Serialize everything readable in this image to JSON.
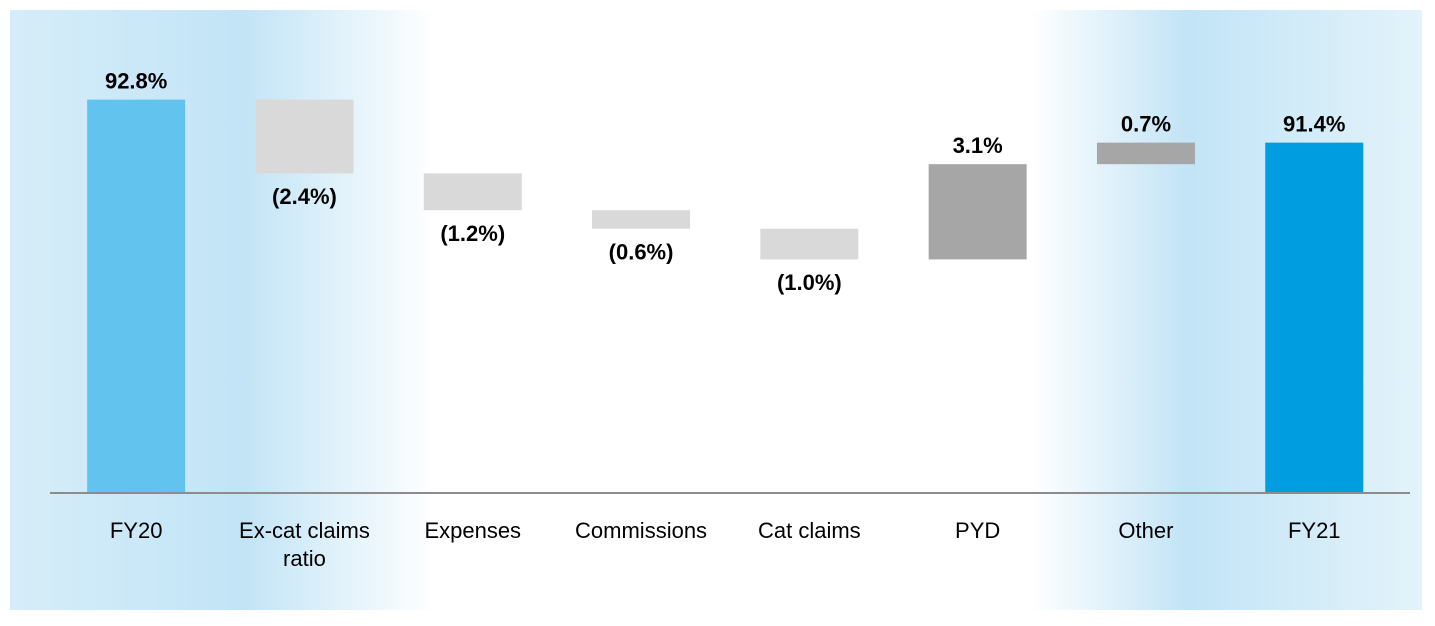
{
  "chart_data": {
    "type": "waterfall",
    "categories": [
      "FY20",
      "Ex-cat claims ratio",
      "Expenses",
      "Commissions",
      "Cat claims",
      "PYD",
      "Other",
      "FY21"
    ],
    "values": [
      92.8,
      -2.4,
      -1.2,
      -0.6,
      -1.0,
      3.1,
      0.7,
      91.4
    ],
    "value_labels": [
      "92.8%",
      "(2.4%)",
      "(1.2%)",
      "(0.6%)",
      "(1.0%)",
      "3.1%",
      "0.7%",
      "91.4%"
    ],
    "measure": [
      "total",
      "relative",
      "relative",
      "relative",
      "relative",
      "relative",
      "relative",
      "total"
    ],
    "colors": [
      "#63c3ef",
      "#d9d9d9",
      "#d9d9d9",
      "#d9d9d9",
      "#d9d9d9",
      "#a6a6a6",
      "#a6a6a6",
      "#009de0"
    ],
    "ylim": [
      80,
      95
    ]
  }
}
